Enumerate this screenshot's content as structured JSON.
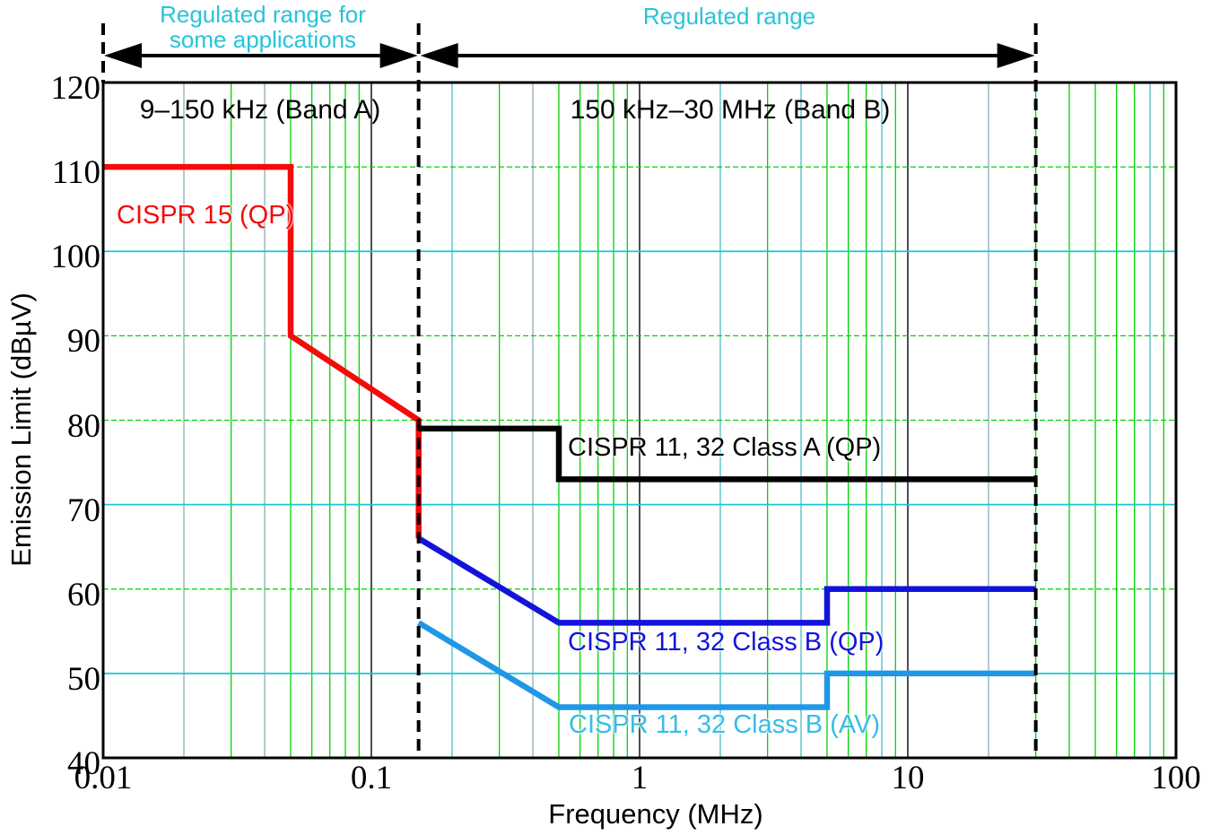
{
  "annotations": {
    "regulated_range_some_line1": "Regulated range for",
    "regulated_range_some_line2": "some applications",
    "regulated_range": "Regulated range",
    "band_a_label": "9–150 kHz (Band A)",
    "band_b_label": "150 kHz–30 MHz (Band B)",
    "annotation_color": "#28c3d8",
    "arrow_color": "#000000"
  },
  "chart_data": {
    "type": "line",
    "title": "",
    "xlabel": "Frequency (MHz)",
    "ylabel": "Emission Limit (dBµV)",
    "x_scale": "log",
    "xlim": [
      0.01,
      100
    ],
    "ylim": [
      40,
      120
    ],
    "xtick_values": [
      0.01,
      0.1,
      1,
      10,
      100
    ],
    "xtick_labels": [
      "0.01",
      "0.1",
      "1",
      "10",
      "100"
    ],
    "ytick_values": [
      40,
      50,
      60,
      70,
      80,
      90,
      100,
      110,
      120
    ],
    "grid": {
      "minor_v_color": "#00d400",
      "decade_color": "#4f4f4f",
      "teal_color": "#74cdd4",
      "slate_color": "#a8bfca",
      "accent_v_lines": [
        {
          "mhz": 0.02,
          "tone": "slate"
        },
        {
          "mhz": 0.04,
          "tone": "slate"
        },
        {
          "mhz": 0.2,
          "tone": "teal"
        },
        {
          "mhz": 0.4,
          "tone": "slate"
        },
        {
          "mhz": 2,
          "tone": "teal"
        },
        {
          "mhz": 4,
          "tone": "teal"
        },
        {
          "mhz": 8,
          "tone": "teal"
        },
        {
          "mhz": 20,
          "tone": "slate"
        },
        {
          "mhz": 80,
          "tone": "teal"
        }
      ],
      "h_green_color": "#00d400",
      "h_cyan_color": "#12ccd6",
      "h_cyan_values": [
        50,
        70,
        100
      ]
    },
    "boundaries_mhz": [
      0.01,
      0.15,
      30
    ],
    "series": [
      {
        "name": "CISPR 15 (QP)",
        "color": "#f50a0a",
        "points": [
          [
            0.01,
            110
          ],
          [
            0.05,
            110
          ],
          [
            0.05,
            90
          ],
          [
            0.15,
            80
          ],
          [
            0.15,
            66
          ]
        ]
      },
      {
        "name": "CISPR 11, 32 Class A (QP)",
        "color": "#000000",
        "points": [
          [
            0.15,
            79
          ],
          [
            0.5,
            79
          ],
          [
            0.5,
            73
          ],
          [
            30,
            73
          ]
        ]
      },
      {
        "name": "CISPR 11, 32 Class B (QP)",
        "color": "#1313dc",
        "points": [
          [
            0.15,
            66
          ],
          [
            0.5,
            56
          ],
          [
            5,
            56
          ],
          [
            5,
            60
          ],
          [
            30,
            60
          ]
        ]
      },
      {
        "name": "CISPR 11, 32 Class B (AV)",
        "color": "#2097e6",
        "label_color": "#35bde9",
        "points": [
          [
            0.15,
            56
          ],
          [
            0.5,
            46
          ],
          [
            5,
            46
          ],
          [
            5,
            50
          ],
          [
            30,
            50
          ]
        ]
      }
    ]
  }
}
